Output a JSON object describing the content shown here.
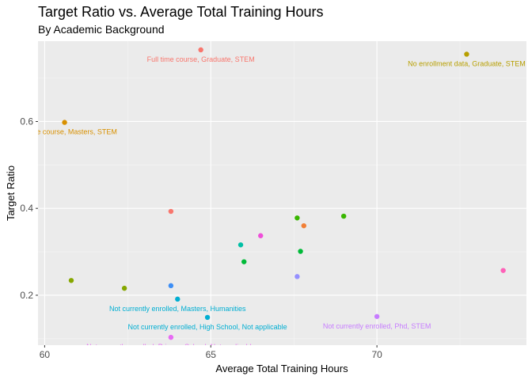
{
  "chart_data": {
    "type": "scatter",
    "title": "Target Ratio vs. Average Total Training Hours",
    "subtitle": "By Academic Background",
    "xlabel": "Average Total Training Hours",
    "ylabel": "Target Ratio",
    "xlim": [
      59.8,
      74.5
    ],
    "ylim": [
      0.085,
      0.785
    ],
    "x_ticks": [
      60,
      65,
      70
    ],
    "y_ticks": [
      0.2,
      0.4,
      0.6
    ],
    "x_tick_labels": [
      "60",
      "65",
      "70"
    ],
    "y_tick_labels": [
      "0.2",
      "0.4",
      "0.6"
    ],
    "grid": true,
    "legend": "none",
    "colors": {
      "panel_background": "#ebebeb",
      "grid_major": "#ffffff",
      "grid_minor": "#f5f5f5"
    },
    "points": [
      {
        "x": 64.7,
        "y": 0.765,
        "color": "#f8766d",
        "label": "Full time course, Graduate, STEM"
      },
      {
        "x": 72.7,
        "y": 0.755,
        "color": "#b79f00",
        "label": "No enrollment data, Graduate, STEM"
      },
      {
        "x": 60.6,
        "y": 0.598,
        "color": "#d89000",
        "label": "Part time course, Masters, STEM"
      },
      {
        "x": 63.8,
        "y": 0.393,
        "color": "#f8766d",
        "label": ""
      },
      {
        "x": 69.0,
        "y": 0.382,
        "color": "#39b600",
        "label": ""
      },
      {
        "x": 67.6,
        "y": 0.378,
        "color": "#39b600",
        "label": ""
      },
      {
        "x": 67.8,
        "y": 0.36,
        "color": "#f17f36",
        "label": ""
      },
      {
        "x": 66.5,
        "y": 0.337,
        "color": "#ef4fd9",
        "label": ""
      },
      {
        "x": 65.9,
        "y": 0.316,
        "color": "#00bfa5",
        "label": ""
      },
      {
        "x": 67.7,
        "y": 0.301,
        "color": "#00ba38",
        "label": ""
      },
      {
        "x": 66.0,
        "y": 0.277,
        "color": "#00ba38",
        "label": ""
      },
      {
        "x": 73.8,
        "y": 0.257,
        "color": "#fe61b8",
        "label": ""
      },
      {
        "x": 67.6,
        "y": 0.243,
        "color": "#9590ff",
        "label": ""
      },
      {
        "x": 60.8,
        "y": 0.234,
        "color": "#86a700",
        "label": ""
      },
      {
        "x": 63.8,
        "y": 0.222,
        "color": "#3d8ef5",
        "label": ""
      },
      {
        "x": 62.4,
        "y": 0.216,
        "color": "#86a700",
        "label": ""
      },
      {
        "x": 64.0,
        "y": 0.191,
        "color": "#00aed2",
        "label": "Not currently enrolled, Masters, Humanities"
      },
      {
        "x": 70.0,
        "y": 0.151,
        "color": "#c77cff",
        "label": "Not currently enrolled, Phd, STEM"
      },
      {
        "x": 64.9,
        "y": 0.149,
        "color": "#00aed2",
        "label": "Not currently enrolled, High School, Not applicable"
      },
      {
        "x": 63.8,
        "y": 0.103,
        "color": "#e76bf3",
        "label": "Not currently enrolled, Primary School, Not applicable"
      }
    ]
  }
}
